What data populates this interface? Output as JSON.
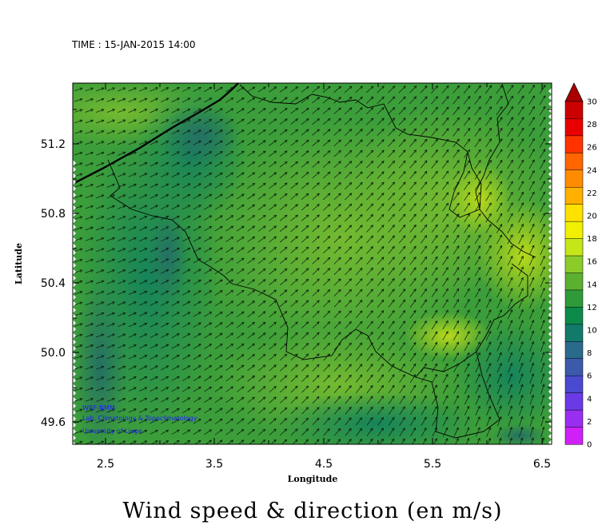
{
  "time_label": "TIME : 15-JAN-2015 14:00",
  "title": "Wind speed & direction (en m/s)",
  "xlabel": "Longitude",
  "ylabel": "Latitude",
  "x_ticks": [
    "2.5",
    "3.5",
    "4.5",
    "5.5",
    "6.5"
  ],
  "y_ticks": [
    "51.2",
    "50.8",
    "50.4",
    "50.0",
    "49.6"
  ],
  "credits": [
    "WRF-NMM",
    "Lab. Climatology & Topoclimatology",
    "University of Liege"
  ],
  "colorbar": {
    "labels": [
      "30",
      "28",
      "26",
      "24",
      "22",
      "20",
      "18",
      "16",
      "14",
      "12",
      "10",
      "8",
      "6",
      "4",
      "2",
      "0"
    ],
    "colors": [
      "#cc0000",
      "#e80000",
      "#ff3300",
      "#ff6600",
      "#ff8c00",
      "#ffb000",
      "#ffe100",
      "#f0f000",
      "#c6e61a",
      "#8ccc2a",
      "#5cb030",
      "#2e9a3a",
      "#0c8a4a",
      "#127a6a",
      "#2a6a8a",
      "#3c5aaa",
      "#4a4ad0",
      "#6a3ae6",
      "#9a2ef0",
      "#d020f8"
    ],
    "tip_color": "#aa0000"
  },
  "map": {
    "colors": {
      "base": "#3c9e3a",
      "light": "#6ab632",
      "yellowish": "#b0d61c",
      "dark": "#1d8a4c",
      "teal": "#227a6a"
    },
    "wind_speed_range_ms": [
      8,
      18
    ],
    "prevailing_wind_direction": "from west-southwest"
  }
}
